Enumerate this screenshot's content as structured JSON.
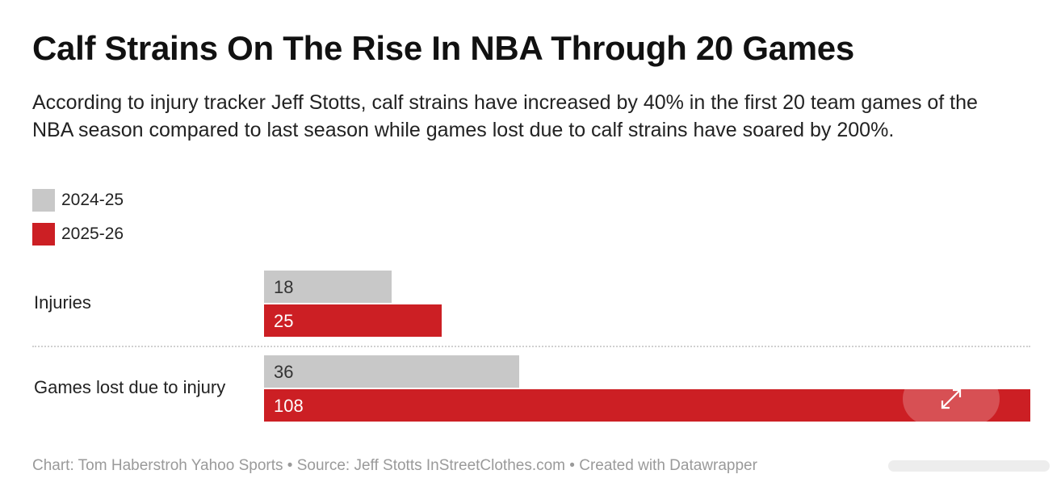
{
  "title": "Calf Strains On The Rise In NBA Through 20 Games",
  "subtitle": "According to injury tracker Jeff Stotts, calf strains have increased by 40% in the first 20 team games of the NBA season compared to last season while games lost due to calf strains have soared by 200%.",
  "footer": "Chart: Tom Haberstroh Yahoo Sports • Source: Jeff Stotts InStreetClothes.com • Created with Datawrapper",
  "colors": {
    "2024-25": "#c8c8c8",
    "2025-26": "#cc1f24",
    "value_text_light_bar": "#333333",
    "value_text_dark_bar": "#ffffff"
  },
  "chart_data": {
    "type": "bar",
    "orientation": "horizontal",
    "categories": [
      "Injuries",
      "Games lost due to injury"
    ],
    "series": [
      {
        "name": "2024-25",
        "values": [
          18,
          36
        ]
      },
      {
        "name": "2025-26",
        "values": [
          25,
          108
        ]
      }
    ],
    "xlim": [
      0,
      108
    ],
    "grid": false,
    "legend_position": "top-left"
  },
  "icons": {
    "expand": "expand-arrows-icon"
  }
}
